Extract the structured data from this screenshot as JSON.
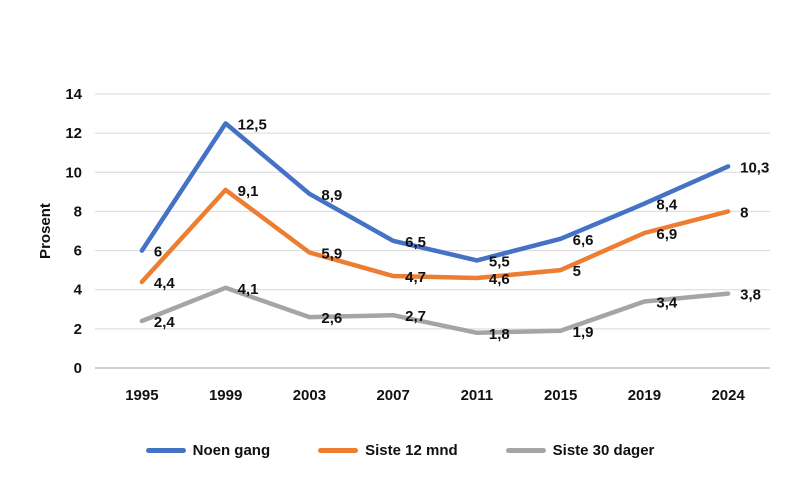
{
  "chart_data": {
    "type": "line",
    "categories": [
      "1995",
      "1999",
      "2003",
      "2007",
      "2011",
      "2015",
      "2019",
      "2024"
    ],
    "series": [
      {
        "name": "Noen gang",
        "color": "#4472C4",
        "values": [
          6,
          12.5,
          8.9,
          6.5,
          5.5,
          6.6,
          8.4,
          10.3
        ],
        "labels": [
          "6",
          "12,5",
          "8,9",
          "6,5",
          "5,5",
          "6,6",
          "8,4",
          "10,3"
        ]
      },
      {
        "name": "Siste 12 mnd",
        "color": "#ED7D31",
        "values": [
          4.4,
          9.1,
          5.9,
          4.7,
          4.6,
          5,
          6.9,
          8
        ],
        "labels": [
          "4,4",
          "9,1",
          "5,9",
          "4,7",
          "4,6",
          "5",
          "6,9",
          "8"
        ]
      },
      {
        "name": "Siste 30 dager",
        "color": "#A5A5A5",
        "values": [
          2.4,
          4.1,
          2.6,
          2.7,
          1.8,
          1.9,
          3.4,
          3.8
        ],
        "labels": [
          "2,4",
          "4,1",
          "2,6",
          "2,7",
          "1,8",
          "1,9",
          "3,4",
          "3,8"
        ]
      }
    ],
    "title": "",
    "xlabel": "",
    "ylabel": "Prosent",
    "ylim": [
      0,
      14
    ],
    "yticks": [
      0,
      2,
      4,
      6,
      8,
      10,
      12,
      14
    ],
    "grid": true,
    "legend_position": "bottom",
    "gridline_color": "#D9D9D9",
    "axis_line_color": "#BFBFBF",
    "label_color": "#111111"
  }
}
